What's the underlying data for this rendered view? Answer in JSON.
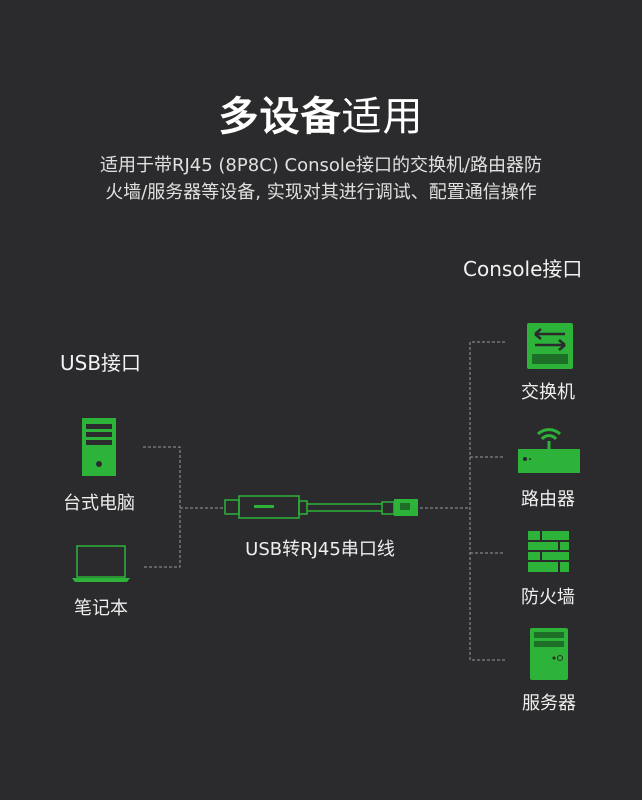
{
  "title": {
    "bold": "多设备",
    "regular": "适用"
  },
  "subtitle": [
    "适用于带RJ45 (8P8C) Console接口的交换机/路由器防",
    "火墙/服务器等设备, 实现对其进行调试、配置通信操作"
  ],
  "left": {
    "header": "USB接口",
    "devices": [
      {
        "label": "台式电脑",
        "icon": "desktop-pc-icon"
      },
      {
        "label": "笔记本",
        "icon": "laptop-icon"
      }
    ]
  },
  "cable": {
    "label": "USB转RJ45串口线",
    "icon": "usb-rj45-cable-icon"
  },
  "right": {
    "header": "Console接口",
    "devices": [
      {
        "label": "交换机",
        "icon": "switch-icon"
      },
      {
        "label": "路由器",
        "icon": "router-icon"
      },
      {
        "label": "防火墙",
        "icon": "firewall-icon"
      },
      {
        "label": "服务器",
        "icon": "server-icon"
      }
    ]
  },
  "colors": {
    "background": "#2b2b2d",
    "accent": "#2db33a"
  }
}
